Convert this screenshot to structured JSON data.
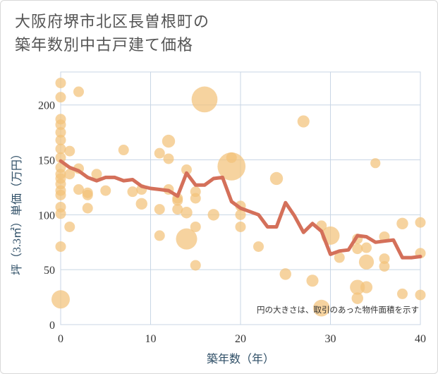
{
  "chart_data": {
    "type": "scatter",
    "title": "大阪府堺市北区長曽根町の\n築年数別中古戸建て価格",
    "title_lines": [
      "大阪府堺市北区長曽根町の",
      "築年数別中古戸建て価格"
    ],
    "xlabel": "築年数（年）",
    "ylabel": "坪（3.3㎡）単価（万円）",
    "note": "円の大きさは、取引のあった物件面積を示す",
    "xlim": [
      0,
      40
    ],
    "ylim": [
      0,
      230
    ],
    "xticks": [
      0,
      10,
      20,
      30,
      40
    ],
    "yticks": [
      0,
      50,
      100,
      150,
      200
    ],
    "grid": true,
    "colors": {
      "bubble": "#f3c27a",
      "trend": "#d4705a",
      "grid": "#c8d6e5"
    },
    "series": [
      {
        "kind": "bubble",
        "points": [
          {
            "x": 0,
            "y": 220,
            "s": 1
          },
          {
            "x": 0,
            "y": 207,
            "s": 1
          },
          {
            "x": 0,
            "y": 187,
            "s": 1
          },
          {
            "x": 0,
            "y": 182,
            "s": 1
          },
          {
            "x": 0,
            "y": 175,
            "s": 1
          },
          {
            "x": 0,
            "y": 168,
            "s": 1
          },
          {
            "x": 0,
            "y": 160,
            "s": 1
          },
          {
            "x": 0,
            "y": 152,
            "s": 1
          },
          {
            "x": 0,
            "y": 143,
            "s": 1
          },
          {
            "x": 0,
            "y": 137,
            "s": 1
          },
          {
            "x": 0,
            "y": 133,
            "s": 1
          },
          {
            "x": 0,
            "y": 128,
            "s": 1
          },
          {
            "x": 0,
            "y": 122,
            "s": 1
          },
          {
            "x": 0,
            "y": 118,
            "s": 1
          },
          {
            "x": 0,
            "y": 107,
            "s": 1
          },
          {
            "x": 0,
            "y": 101,
            "s": 1
          },
          {
            "x": 0,
            "y": 71,
            "s": 1
          },
          {
            "x": 0,
            "y": 23,
            "s": 3
          },
          {
            "x": 1,
            "y": 158,
            "s": 1
          },
          {
            "x": 1,
            "y": 137,
            "s": 1
          },
          {
            "x": 1,
            "y": 89,
            "s": 1
          },
          {
            "x": 2,
            "y": 212,
            "s": 1
          },
          {
            "x": 2,
            "y": 142,
            "s": 1
          },
          {
            "x": 2,
            "y": 123,
            "s": 1
          },
          {
            "x": 3,
            "y": 120,
            "s": 1
          },
          {
            "x": 3,
            "y": 118,
            "s": 1
          },
          {
            "x": 3,
            "y": 106,
            "s": 1
          },
          {
            "x": 4,
            "y": 137,
            "s": 1
          },
          {
            "x": 5,
            "y": 122,
            "s": 1
          },
          {
            "x": 7,
            "y": 159,
            "s": 1
          },
          {
            "x": 8,
            "y": 121,
            "s": 1
          },
          {
            "x": 9,
            "y": 123,
            "s": 1
          },
          {
            "x": 9,
            "y": 110,
            "s": 1.2
          },
          {
            "x": 11,
            "y": 156,
            "s": 1
          },
          {
            "x": 11,
            "y": 105,
            "s": 1
          },
          {
            "x": 11,
            "y": 81,
            "s": 1
          },
          {
            "x": 12,
            "y": 167,
            "s": 1.5
          },
          {
            "x": 12,
            "y": 151,
            "s": 1
          },
          {
            "x": 12,
            "y": 123,
            "s": 1
          },
          {
            "x": 13,
            "y": 115,
            "s": 1
          },
          {
            "x": 13,
            "y": 113,
            "s": 1
          },
          {
            "x": 13,
            "y": 105,
            "s": 1
          },
          {
            "x": 14,
            "y": 141,
            "s": 1
          },
          {
            "x": 14,
            "y": 102,
            "s": 1.2
          },
          {
            "x": 14,
            "y": 78,
            "s": 4
          },
          {
            "x": 15,
            "y": 121,
            "s": 1
          },
          {
            "x": 15,
            "y": 115,
            "s": 1
          },
          {
            "x": 15,
            "y": 89,
            "s": 1
          },
          {
            "x": 15,
            "y": 54,
            "s": 1
          },
          {
            "x": 16,
            "y": 205,
            "s": 6
          },
          {
            "x": 17,
            "y": 100,
            "s": 1.2
          },
          {
            "x": 19,
            "y": 144,
            "s": 7
          },
          {
            "x": 19,
            "y": 152,
            "s": 1
          },
          {
            "x": 20,
            "y": 108,
            "s": 1
          },
          {
            "x": 20,
            "y": 100,
            "s": 1
          },
          {
            "x": 20,
            "y": 89,
            "s": 1
          },
          {
            "x": 22,
            "y": 71,
            "s": 1
          },
          {
            "x": 24,
            "y": 133,
            "s": 1.5
          },
          {
            "x": 25,
            "y": 46,
            "s": 1.2
          },
          {
            "x": 27,
            "y": 185,
            "s": 1.3
          },
          {
            "x": 28,
            "y": 40,
            "s": 1.3
          },
          {
            "x": 29,
            "y": 90,
            "s": 1
          },
          {
            "x": 29,
            "y": 15,
            "s": 2.5
          },
          {
            "x": 30,
            "y": 81,
            "s": 3
          },
          {
            "x": 31,
            "y": 61,
            "s": 1
          },
          {
            "x": 33,
            "y": 78,
            "s": 1
          },
          {
            "x": 33,
            "y": 69,
            "s": 1
          },
          {
            "x": 33,
            "y": 34,
            "s": 2
          },
          {
            "x": 33,
            "y": 24,
            "s": 1.2
          },
          {
            "x": 34,
            "y": 70,
            "s": 1
          },
          {
            "x": 34,
            "y": 57,
            "s": 2
          },
          {
            "x": 34,
            "y": 34,
            "s": 1.3
          },
          {
            "x": 35,
            "y": 147,
            "s": 0.9
          },
          {
            "x": 36,
            "y": 80,
            "s": 1
          },
          {
            "x": 36,
            "y": 60,
            "s": 1
          },
          {
            "x": 36,
            "y": 53,
            "s": 1
          },
          {
            "x": 38,
            "y": 92,
            "s": 1.2
          },
          {
            "x": 38,
            "y": 28,
            "s": 1
          },
          {
            "x": 40,
            "y": 93,
            "s": 1
          },
          {
            "x": 40,
            "y": 65,
            "s": 1
          },
          {
            "x": 40,
            "y": 27,
            "s": 1
          }
        ]
      },
      {
        "kind": "line",
        "x": [
          0,
          1,
          2,
          3,
          4,
          5,
          6,
          7,
          8,
          9,
          10,
          11,
          12,
          13,
          14,
          15,
          16,
          17,
          18,
          19,
          20,
          21,
          22,
          23,
          24,
          25,
          26,
          27,
          28,
          29,
          30,
          31,
          32,
          33,
          34,
          35,
          36,
          37,
          38,
          39,
          40
        ],
        "y": [
          149,
          143,
          140,
          134,
          131,
          134,
          134,
          131,
          132,
          126,
          124,
          123,
          122,
          117,
          138,
          127,
          127,
          133,
          134,
          112,
          106,
          103,
          100,
          89,
          89,
          111,
          99,
          84,
          92,
          85,
          64,
          67,
          68,
          81,
          80,
          75,
          76,
          77,
          61,
          61,
          62
        ]
      }
    ]
  }
}
